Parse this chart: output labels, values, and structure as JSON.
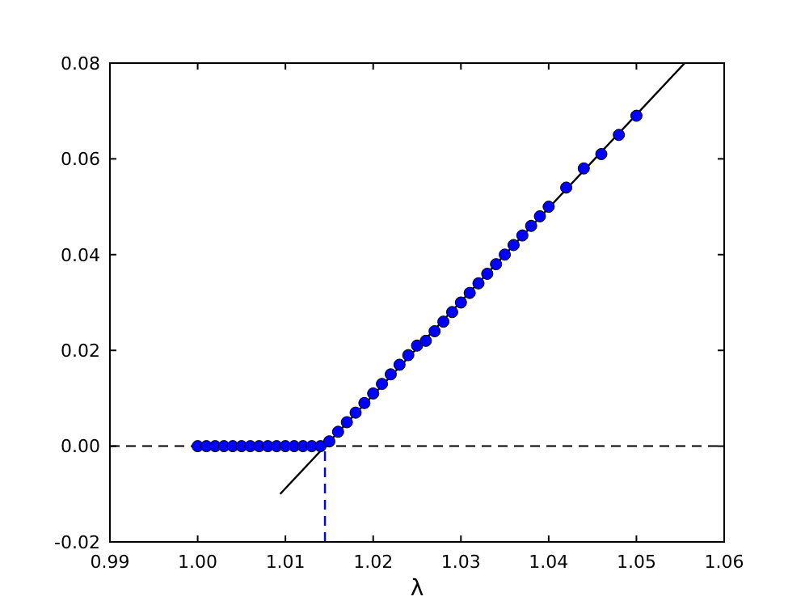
{
  "chart_data": {
    "type": "scatter",
    "xlabel": "λ",
    "xlim": [
      0.99,
      1.06
    ],
    "ylim": [
      -0.02,
      0.08
    ],
    "xticks": [
      {
        "value": 0.99,
        "label": "0.99"
      },
      {
        "value": 1.0,
        "label": "1.00"
      },
      {
        "value": 1.01,
        "label": "1.01"
      },
      {
        "value": 1.02,
        "label": "1.02"
      },
      {
        "value": 1.03,
        "label": "1.03"
      },
      {
        "value": 1.04,
        "label": "1.04"
      },
      {
        "value": 1.05,
        "label": "1.05"
      },
      {
        "value": 1.06,
        "label": "1.06"
      }
    ],
    "yticks": [
      {
        "value": -0.02,
        "label": "-0.02"
      },
      {
        "value": 0,
        "label": "0.00"
      },
      {
        "value": 0.02,
        "label": "0.02"
      },
      {
        "value": 0.04,
        "label": "0.04"
      },
      {
        "value": 0.06,
        "label": "0.06"
      },
      {
        "value": 0.08,
        "label": "0.08"
      }
    ],
    "grid": false,
    "ref_lines": [
      {
        "axis": "y",
        "value": 0,
        "color": "#000000",
        "line_style": "dashed"
      }
    ],
    "series": [
      {
        "type": "line",
        "color": "#000000",
        "line_style": "solid",
        "marker": "none",
        "x": [
          1.0094,
          1.0555
        ],
        "values": [
          -0.01,
          0.08
        ]
      },
      {
        "type": "line",
        "color": "#0000ff",
        "line_style": "dashed",
        "marker": "none",
        "x": [
          1.0145,
          1.0145
        ],
        "values": [
          -0.02,
          0
        ]
      },
      {
        "color": "#0000ff",
        "marker": "circle",
        "x": [
          1.0,
          1.001,
          1.002,
          1.003,
          1.004,
          1.005,
          1.006,
          1.007,
          1.008,
          1.009,
          1.01,
          1.011,
          1.012,
          1.013,
          1.014,
          1.015,
          1.016,
          1.017,
          1.018,
          1.019,
          1.02,
          1.021,
          1.022,
          1.023,
          1.024,
          1.025,
          1.026,
          1.027,
          1.028,
          1.029,
          1.03,
          1.031,
          1.032,
          1.033,
          1.034,
          1.035,
          1.036,
          1.037,
          1.038,
          1.039,
          1.04,
          1.042,
          1.044,
          1.046,
          1.048,
          1.05
        ],
        "values": [
          0,
          0,
          0,
          0,
          0,
          0,
          0,
          0,
          0,
          0,
          0,
          0,
          0,
          0,
          0,
          0.001,
          0.003,
          0.005,
          0.007,
          0.009,
          0.011,
          0.013,
          0.015,
          0.017,
          0.019,
          0.021,
          0.022,
          0.024,
          0.026,
          0.028,
          0.03,
          0.032,
          0.034,
          0.036,
          0.038,
          0.04,
          0.042,
          0.044,
          0.046,
          0.048,
          0.05,
          0.054,
          0.058,
          0.061,
          0.065,
          0.069
        ]
      }
    ]
  }
}
